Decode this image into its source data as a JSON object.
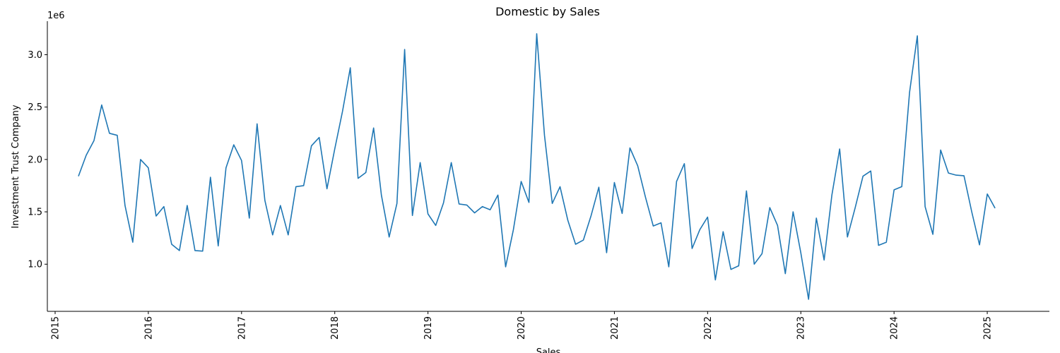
{
  "chart_data": {
    "type": "line",
    "title": "Domestic by Sales",
    "xlabel": "Sales",
    "ylabel": "Investment Trust Company",
    "y_offset_label": "1e6",
    "x_tick_labels": [
      "2015",
      "2016",
      "2017",
      "2018",
      "2019",
      "2020",
      "2021",
      "2022",
      "2023",
      "2024",
      "2025"
    ],
    "y_tick_labels": [
      "1.0",
      "1.5",
      "2.0",
      "2.5",
      "3.0"
    ],
    "y_ticks": [
      1000000,
      1500000,
      2000000,
      2500000,
      3000000
    ],
    "xlim": [
      "2014-12-01",
      "2025-09-01"
    ],
    "ylim": [
      550000,
      3320000
    ],
    "grid": false,
    "color": "#1f77b4",
    "series": [
      {
        "x": [
          "2015-04",
          "2015-05",
          "2015-06",
          "2015-07",
          "2015-08",
          "2015-09",
          "2015-10",
          "2015-11",
          "2015-12",
          "2016-01",
          "2016-02",
          "2016-03",
          "2016-04",
          "2016-05",
          "2016-06",
          "2016-07",
          "2016-08",
          "2016-09",
          "2016-10",
          "2016-11",
          "2016-12",
          "2017-01",
          "2017-02",
          "2017-03",
          "2017-04",
          "2017-05",
          "2017-06",
          "2017-07",
          "2017-08",
          "2017-09",
          "2017-10",
          "2017-11",
          "2017-12",
          "2018-01",
          "2018-02",
          "2018-03",
          "2018-04",
          "2018-05",
          "2018-06",
          "2018-07",
          "2018-08",
          "2018-09",
          "2018-10",
          "2018-11",
          "2018-12",
          "2019-01",
          "2019-02",
          "2019-03",
          "2019-04",
          "2019-05",
          "2019-06",
          "2019-07",
          "2019-08",
          "2019-09",
          "2019-10",
          "2019-11",
          "2019-12",
          "2020-01",
          "2020-02",
          "2020-03",
          "2020-04",
          "2020-05",
          "2020-06",
          "2020-07",
          "2020-08",
          "2020-09",
          "2020-10",
          "2020-11",
          "2020-12",
          "2021-01",
          "2021-02",
          "2021-03",
          "2021-04",
          "2021-05",
          "2021-06",
          "2021-07",
          "2021-08",
          "2021-09",
          "2021-10",
          "2021-11",
          "2021-12",
          "2022-01",
          "2022-02",
          "2022-03",
          "2022-04",
          "2022-05",
          "2022-06",
          "2022-07",
          "2022-08",
          "2022-09",
          "2022-10",
          "2022-11",
          "2022-12",
          "2023-01",
          "2023-02",
          "2023-03",
          "2023-04",
          "2023-05",
          "2023-06",
          "2023-07",
          "2023-08",
          "2023-09",
          "2023-10",
          "2023-11",
          "2023-12",
          "2024-01",
          "2024-02",
          "2024-03",
          "2024-04",
          "2024-05",
          "2024-06",
          "2024-07",
          "2024-08",
          "2024-09",
          "2024-10",
          "2024-11",
          "2024-12",
          "2025-01",
          "2025-02"
        ],
        "values": [
          1840000,
          2040000,
          2180000,
          2520000,
          2250000,
          2230000,
          1560000,
          1210000,
          2000000,
          1920000,
          1460000,
          1550000,
          1190000,
          1130000,
          1560000,
          1130000,
          1125000,
          1830000,
          1175000,
          1920000,
          2140000,
          1990000,
          1440000,
          2340000,
          1610000,
          1280000,
          1560000,
          1280000,
          1740000,
          1750000,
          2130000,
          2210000,
          1720000,
          2100000,
          2460000,
          2875000,
          1820000,
          1875000,
          2300000,
          1660000,
          1260000,
          1580000,
          3050000,
          1465000,
          1970000,
          1480000,
          1370000,
          1585000,
          1970000,
          1575000,
          1565000,
          1490000,
          1550000,
          1520000,
          1660000,
          975000,
          1330000,
          1790000,
          1590000,
          3200000,
          2230000,
          1580000,
          1740000,
          1420000,
          1190000,
          1230000,
          1465000,
          1735000,
          1110000,
          1780000,
          1485000,
          2110000,
          1940000,
          1640000,
          1365000,
          1395000,
          975000,
          1790000,
          1960000,
          1150000,
          1330000,
          1450000,
          850000,
          1310000,
          950000,
          985000,
          1700000,
          1000000,
          1100000,
          1540000,
          1370000,
          910000,
          1500000,
          1110000,
          665000,
          1440000,
          1040000,
          1660000,
          2100000,
          1260000,
          1540000,
          1840000,
          1890000,
          1180000,
          1210000,
          1710000,
          1740000,
          2640000,
          3180000,
          1550000,
          1285000,
          2090000,
          1870000,
          1850000,
          1845000,
          1500000,
          1185000,
          1670000,
          1535000
        ]
      }
    ]
  }
}
